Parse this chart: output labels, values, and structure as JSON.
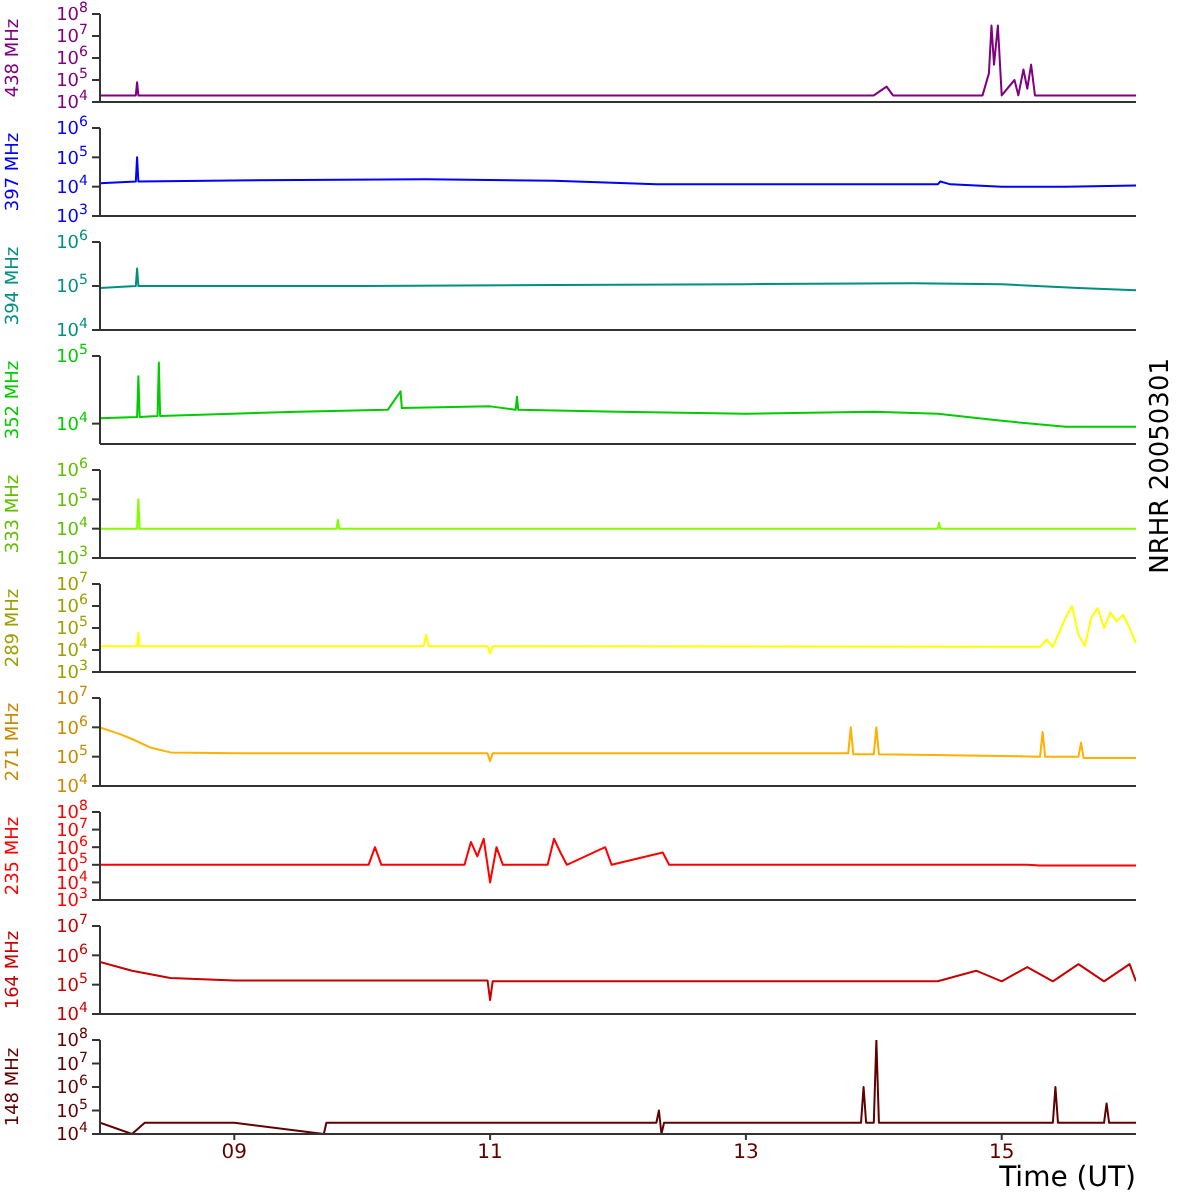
{
  "chart_data": [
    {
      "type": "line",
      "ylabel": "438 MHz",
      "color": "#800080",
      "log": true,
      "marker": "none",
      "tick_labels": "y",
      "xlim": [
        7.95,
        16.05
      ],
      "ylim": [
        10000,
        100000000
      ],
      "yticks": [
        {
          "value": 10000,
          "label": "10$^{4}$"
        },
        {
          "value": 100000,
          "label": "10$^{5}$"
        },
        {
          "value": 1000000,
          "label": "10$^{6}$"
        },
        {
          "value": 10000000,
          "label": "10$^{7}$"
        },
        {
          "value": 100000000,
          "label": "10$^{8}$"
        }
      ],
      "x": [
        7.95,
        8.23,
        8.24,
        8.25,
        10.5,
        12.5,
        14.0,
        14.1,
        14.15,
        14.85,
        14.9,
        14.92,
        14.94,
        14.97,
        15.0,
        15.1,
        15.13,
        15.17,
        15.2,
        15.23,
        15.26,
        16.05
      ],
      "values": [
        20000,
        20000,
        80000,
        20000,
        20000,
        20000,
        20000,
        50000,
        20000,
        20000,
        200000,
        30000000,
        500000,
        30000000,
        20000,
        100000,
        20000,
        300000,
        40000,
        500000,
        20000,
        20000
      ]
    },
    {
      "type": "line",
      "ylabel": "397 MHz",
      "color": "#0000ff",
      "log": true,
      "marker": "none",
      "tick_labels": "y",
      "xlim": [
        7.95,
        16.05
      ],
      "ylim": [
        1000,
        1000000
      ],
      "yticks": [
        {
          "value": 1000,
          "label": "10$^{3}$"
        },
        {
          "value": 10000,
          "label": "10$^{4}$"
        },
        {
          "value": 100000,
          "label": "10$^{5}$"
        },
        {
          "value": 1000000,
          "label": "10$^{6}$"
        }
      ],
      "x": [
        7.95,
        8.23,
        8.24,
        8.25,
        9.5,
        10.5,
        11.5,
        12.3,
        13.0,
        14.5,
        14.52,
        14.6,
        15.0,
        15.5,
        16.05
      ],
      "values": [
        13000,
        15000,
        100000,
        15000,
        17000,
        18000,
        16000,
        12000,
        12000,
        12000,
        15000,
        12000,
        10000,
        10000,
        11000
      ]
    },
    {
      "type": "line",
      "ylabel": "394 MHz",
      "color": "#009080",
      "log": true,
      "marker": "none",
      "tick_labels": "y",
      "xlim": [
        7.95,
        16.05
      ],
      "ylim": [
        10000,
        1000000
      ],
      "yticks": [
        {
          "value": 10000,
          "label": "10$^{4}$"
        },
        {
          "value": 100000,
          "label": "10$^{5}$"
        },
        {
          "value": 1000000,
          "label": "10$^{6}$"
        }
      ],
      "x": [
        7.95,
        8.23,
        8.24,
        8.25,
        10.0,
        11.5,
        13.0,
        14.3,
        15.0,
        15.6,
        16.05
      ],
      "values": [
        90000,
        100000,
        250000,
        100000,
        100000,
        105000,
        110000,
        115000,
        110000,
        90000,
        80000
      ]
    },
    {
      "type": "line",
      "ylabel": "352 MHz",
      "color": "#00cc00",
      "log": true,
      "marker": "none",
      "tick_labels": "y",
      "xlim": [
        7.95,
        16.05
      ],
      "ylim": [
        5000,
        100000
      ],
      "yticks": [
        {
          "value": 10000,
          "label": "10$^{4}$"
        },
        {
          "value": 100000,
          "label": "10$^{5}$"
        }
      ],
      "annotations": [
        "NRHR 20050301"
      ],
      "x": [
        7.95,
        8.24,
        8.25,
        8.26,
        8.4,
        8.41,
        8.42,
        9.5,
        10.2,
        10.3,
        10.31,
        11.0,
        11.2,
        11.21,
        11.22,
        12.0,
        13.0,
        14.0,
        14.5,
        15.0,
        15.5,
        16.05
      ],
      "values": [
        12000,
        12500,
        50000,
        12500,
        13000,
        80000,
        13000,
        15000,
        16000,
        30000,
        17000,
        18000,
        16000,
        25000,
        16000,
        15000,
        14000,
        15000,
        14000,
        11000,
        9000,
        9000
      ]
    },
    {
      "type": "line",
      "ylabel": "333 MHz",
      "color": "#80ff00",
      "log": true,
      "marker": "none",
      "tick_labels": "y",
      "xlim": [
        7.95,
        16.05
      ],
      "ylim": [
        1000,
        1000000
      ],
      "yticks": [
        {
          "value": 1000,
          "label": "10$^{3}$"
        },
        {
          "value": 10000,
          "label": "10$^{4}$"
        },
        {
          "value": 100000,
          "label": "10$^{5}$"
        },
        {
          "value": 1000000,
          "label": "10$^{6}$"
        }
      ],
      "x": [
        7.95,
        8.24,
        8.25,
        8.26,
        9.8,
        9.81,
        9.82,
        14.5,
        14.51,
        14.52,
        16.05
      ],
      "values": [
        10000,
        10000,
        100000,
        10000,
        10000,
        20000,
        10000,
        10000,
        16000,
        10000,
        10000
      ]
    },
    {
      "type": "line",
      "ylabel": "289 MHz",
      "color": "#ffff00",
      "log": true,
      "marker": "none",
      "tick_labels": "y",
      "xlim": [
        7.95,
        16.05
      ],
      "ylim": [
        1000,
        10000000
      ],
      "yticks": [
        {
          "value": 1000,
          "label": "10$^{3}$"
        },
        {
          "value": 10000,
          "label": "10$^{4}$"
        },
        {
          "value": 100000,
          "label": "10$^{5}$"
        },
        {
          "value": 1000000,
          "label": "10$^{6}$"
        },
        {
          "value": 10000000,
          "label": "10$^{7}$"
        }
      ],
      "x": [
        7.95,
        8.24,
        8.25,
        8.26,
        10.48,
        10.5,
        10.52,
        10.98,
        11.0,
        11.02,
        15.3,
        15.35,
        15.4,
        15.5,
        15.55,
        15.6,
        15.65,
        15.7,
        15.75,
        15.8,
        15.85,
        15.9,
        15.95,
        16.0,
        16.05
      ],
      "values": [
        15000,
        15000,
        60000,
        15000,
        15000,
        50000,
        15000,
        15000,
        7000,
        15000,
        14000,
        30000,
        14000,
        300000,
        1000000,
        50000,
        15000,
        300000,
        800000,
        100000,
        500000,
        200000,
        400000,
        100000,
        20000
      ]
    },
    {
      "type": "line",
      "ylabel": "271 MHz",
      "color": "#ffb000",
      "log": true,
      "marker": "none",
      "tick_labels": "y",
      "xlim": [
        7.95,
        16.05
      ],
      "ylim": [
        10000,
        10000000
      ],
      "yticks": [
        {
          "value": 10000,
          "label": "10$^{4}$"
        },
        {
          "value": 100000,
          "label": "10$^{5}$"
        },
        {
          "value": 1000000,
          "label": "10$^{6}$"
        },
        {
          "value": 10000000,
          "label": "10$^{7}$"
        }
      ],
      "x": [
        7.95,
        8.1,
        8.2,
        8.35,
        8.5,
        9.0,
        10.5,
        10.98,
        11.0,
        11.02,
        13.8,
        13.82,
        13.84,
        14.0,
        14.02,
        14.04,
        15.3,
        15.32,
        15.34,
        15.6,
        15.62,
        15.64,
        16.05
      ],
      "values": [
        1000000,
        600000,
        400000,
        200000,
        140000,
        130000,
        130000,
        130000,
        70000,
        130000,
        130000,
        1000000,
        120000,
        120000,
        1000000,
        120000,
        100000,
        700000,
        100000,
        100000,
        300000,
        90000,
        90000
      ]
    },
    {
      "type": "line",
      "ylabel": "235 MHz",
      "color": "#ff0000",
      "log": true,
      "marker": "none",
      "tick_labels": "y",
      "xlim": [
        7.95,
        16.05
      ],
      "ylim": [
        1000,
        100000000
      ],
      "yticks": [
        {
          "value": 1000,
          "label": "10$^{3}$"
        },
        {
          "value": 10000,
          "label": "10$^{4}$"
        },
        {
          "value": 100000,
          "label": "10$^{5}$"
        },
        {
          "value": 1000000,
          "label": "10$^{6}$"
        },
        {
          "value": 10000000,
          "label": "10$^{7}$"
        },
        {
          "value": 100000000,
          "label": "10$^{8}$"
        }
      ],
      "x": [
        7.95,
        10.05,
        10.1,
        10.15,
        10.8,
        10.85,
        10.9,
        10.95,
        11.0,
        11.05,
        11.1,
        11.45,
        11.5,
        11.55,
        11.6,
        11.9,
        11.95,
        12.35,
        12.4,
        15.2,
        15.3,
        16.05
      ],
      "values": [
        100000,
        100000,
        1000000,
        100000,
        100000,
        2000000,
        300000,
        3000000,
        10000,
        1000000,
        100000,
        100000,
        3000000,
        500000,
        100000,
        1000000,
        100000,
        500000,
        100000,
        100000,
        90000,
        90000
      ]
    },
    {
      "type": "line",
      "ylabel": "164 MHz",
      "color": "#c80000",
      "log": true,
      "marker": "none",
      "tick_labels": "y",
      "xlim": [
        7.95,
        16.05
      ],
      "ylim": [
        10000,
        10000000
      ],
      "yticks": [
        {
          "value": 10000,
          "label": "10$^{4}$"
        },
        {
          "value": 100000,
          "label": "10$^{5}$"
        },
        {
          "value": 1000000,
          "label": "10$^{6}$"
        },
        {
          "value": 10000000,
          "label": "10$^{7}$"
        }
      ],
      "x": [
        7.95,
        8.2,
        8.5,
        9.0,
        10.98,
        11.0,
        11.02,
        14.5,
        14.8,
        15.0,
        15.2,
        15.4,
        15.6,
        15.8,
        16.0,
        16.05
      ],
      "values": [
        600000,
        300000,
        170000,
        140000,
        140000,
        30000,
        130000,
        130000,
        300000,
        130000,
        400000,
        130000,
        500000,
        130000,
        500000,
        130000
      ]
    },
    {
      "type": "line",
      "ylabel": "148 MHz",
      "xlabel": "Time (UT)",
      "color": "#600000",
      "log": true,
      "marker": "none",
      "xlim": [
        7.95,
        16.05
      ],
      "xticks": [
        {
          "value": 9,
          "label": "09"
        },
        11,
        13,
        15
      ],
      "ylim": [
        10000,
        100000000
      ],
      "yticks": [
        {
          "value": 10000,
          "label": "10$^{4}$"
        },
        {
          "value": 100000,
          "label": "10$^{5}$"
        },
        {
          "value": 1000000,
          "label": "10$^{6}$"
        },
        {
          "value": 10000000,
          "label": "10$^{7}$"
        },
        {
          "value": 100000000,
          "label": "10$^{8}$"
        }
      ],
      "x": [
        7.95,
        8.2,
        8.3,
        9.0,
        9.7,
        9.72,
        12.3,
        12.32,
        12.34,
        12.36,
        13.9,
        13.92,
        13.94,
        14.0,
        14.02,
        14.04,
        15.4,
        15.42,
        15.44,
        15.8,
        15.82,
        15.84,
        16.05
      ],
      "values": [
        30000,
        10000,
        30000,
        30000,
        10000,
        30000,
        30000,
        100000,
        10000,
        30000,
        30000,
        1000000,
        30000,
        30000,
        100000000,
        30000,
        30000,
        1000000,
        30000,
        30000,
        200000,
        30000,
        30000
      ]
    }
  ]
}
